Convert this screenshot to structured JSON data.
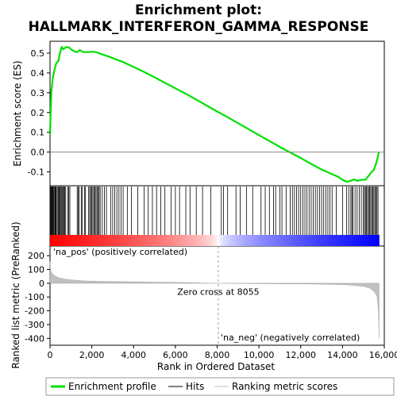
{
  "chart_data": {
    "type": "line",
    "title": "Enrichment plot: HALLMARK_INTERFERON_GAMMA_RESPONSE",
    "xlabel": "Rank in Ordered Dataset",
    "es_plot": {
      "ylabel": "Enrichment score (ES)",
      "ylim": [
        -0.17,
        0.56
      ],
      "yticks": [
        "0.5",
        "0.4",
        "0.3",
        "0.2",
        "0.1",
        "0.0",
        "-0.1"
      ],
      "x": [
        0,
        60,
        130,
        200,
        300,
        400,
        470,
        560,
        640,
        760,
        900,
        1000,
        1150,
        1300,
        1420,
        1600,
        1800,
        2000,
        2200,
        2450,
        2700,
        3000,
        3500,
        4000,
        4500,
        5000,
        5500,
        6000,
        6500,
        7000,
        7500,
        8000,
        8500,
        9000,
        9500,
        10000,
        10500,
        11000,
        11500,
        12000,
        12500,
        13000,
        13500,
        13800,
        14000,
        14200,
        14400,
        14550,
        14700,
        14900,
        15100,
        15250,
        15400,
        15500,
        15600,
        15680,
        15740
      ],
      "y": [
        0.09,
        0.3,
        0.37,
        0.41,
        0.45,
        0.46,
        0.5,
        0.53,
        0.52,
        0.53,
        0.53,
        0.52,
        0.51,
        0.505,
        0.515,
        0.505,
        0.505,
        0.507,
        0.505,
        0.495,
        0.487,
        0.475,
        0.455,
        0.43,
        0.405,
        0.378,
        0.35,
        0.322,
        0.295,
        0.265,
        0.235,
        0.205,
        0.176,
        0.146,
        0.116,
        0.086,
        0.056,
        0.026,
        -0.002,
        -0.03,
        -0.06,
        -0.088,
        -0.112,
        -0.125,
        -0.14,
        -0.15,
        -0.145,
        -0.138,
        -0.145,
        -0.14,
        -0.14,
        -0.12,
        -0.1,
        -0.09,
        -0.06,
        -0.03,
        0.0
      ]
    },
    "hits": {
      "positions": [
        20,
        50,
        80,
        110,
        140,
        170,
        200,
        240,
        270,
        300,
        350,
        400,
        430,
        460,
        500,
        540,
        580,
        620,
        660,
        700,
        750,
        850,
        900,
        950,
        1300,
        1350,
        1400,
        1500,
        1550,
        1650,
        1700,
        1850,
        1900,
        1950,
        2000,
        2050,
        2100,
        2150,
        2200,
        2250,
        2300,
        2350,
        2400,
        2500,
        2600,
        2700,
        2900,
        3000,
        3100,
        3200,
        3300,
        3400,
        3500,
        3700,
        3900,
        4200,
        4500,
        4700,
        4900,
        5100,
        5300,
        5500,
        5800,
        6000,
        6200,
        6500,
        6700,
        7000,
        7300,
        7700,
        8200,
        8300,
        8500,
        8900,
        9100,
        9400,
        9700,
        10100,
        10300,
        10500,
        10700,
        10800,
        11000,
        11100,
        11300,
        11500,
        11600,
        11700,
        11800,
        11900,
        12000,
        12100,
        12200,
        12300,
        12400,
        12500,
        12600,
        12700,
        12800,
        12900,
        13000,
        13100,
        13200,
        13300,
        13400,
        13500,
        13700,
        14000,
        14200,
        14300,
        14400,
        14450,
        14500,
        14600,
        14700,
        14800,
        14900,
        15000,
        15050,
        15100,
        15150,
        15200,
        15250,
        15300,
        15350,
        15400,
        15450,
        15500,
        15550,
        15600,
        15650,
        15700
      ]
    },
    "ranked_metric": {
      "ylabel": "Ranked list metric (PreRanked)",
      "ylim": [
        -450,
        270
      ],
      "yticks": [
        "200",
        "100",
        "0",
        "-100",
        "-200",
        "-300",
        "-400"
      ],
      "zero_cross_label": "Zero cross at 8055",
      "zero_cross": 8055,
      "pos_label": "'na_pos' (positively correlated)",
      "neg_label": "'na_neg' (negatively correlated)",
      "x": [
        0,
        30,
        100,
        200,
        400,
        700,
        1000,
        1500,
        2000,
        3000,
        4000,
        5000,
        6000,
        7000,
        8055,
        9000,
        10000,
        11000,
        12000,
        13000,
        14000,
        14500,
        15000,
        15300,
        15500,
        15650,
        15720,
        15750
      ],
      "y": [
        160,
        95,
        70,
        55,
        40,
        30,
        25,
        18,
        15,
        12,
        10,
        8,
        6,
        3,
        0,
        -2,
        -3,
        -4,
        -5,
        -7,
        -10,
        -15,
        -22,
        -35,
        -55,
        -90,
        -200,
        -400
      ]
    },
    "xlim": [
      0,
      16000
    ],
    "xticks": [
      "0",
      "2,000",
      "4,000",
      "6,000",
      "8,000",
      "10,000",
      "12,000",
      "14,000",
      "16,000"
    ],
    "legend": [
      {
        "label": "Enrichment profile",
        "color": "#00e000"
      },
      {
        "label": "Hits",
        "color": "#000000"
      },
      {
        "label": "Ranking metric scores",
        "color": "#c0c0c0"
      }
    ],
    "colors": {
      "profile": "#00e000",
      "pos_band": "#ff0000",
      "neg_band": "#0000ff",
      "pos_text": "#cc0000",
      "neg_text": "#0000cc",
      "metric_fill": "#c0c0c0",
      "zero_line": "#a0a0a0"
    }
  }
}
